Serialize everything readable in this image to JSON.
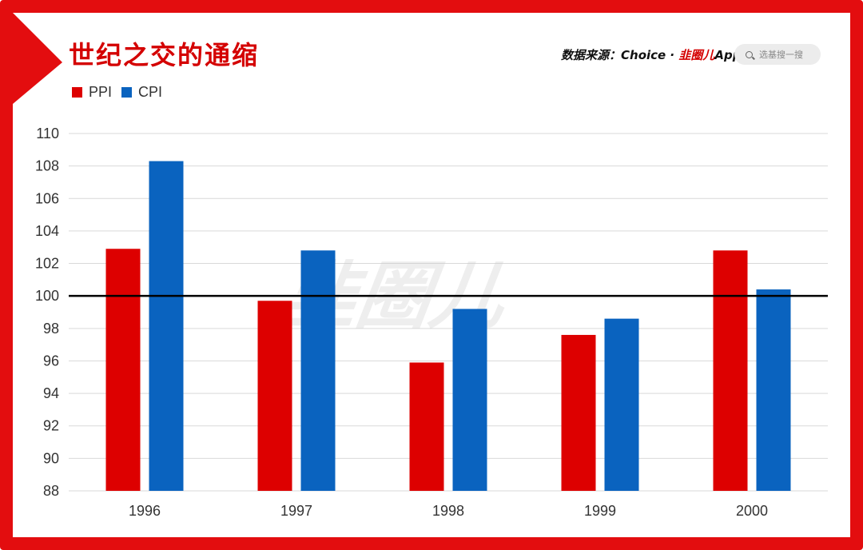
{
  "header": {
    "title": "世纪之交的通缩",
    "source_prefix": "数据来源：Choice · ",
    "source_brand": "韭圈儿",
    "source_suffix": "App",
    "search_placeholder": "选基搜一搜",
    "watermark": "韭圈儿"
  },
  "colors": {
    "frame": "#e30d0f",
    "ppi": "#dd0000",
    "cpi": "#0a63bf",
    "baseline": "#000000"
  },
  "chart_data": {
    "type": "bar",
    "title": "世纪之交的通缩",
    "categories": [
      "1996",
      "1997",
      "1998",
      "1999",
      "2000"
    ],
    "series": [
      {
        "name": "PPI",
        "values": [
          102.9,
          99.7,
          95.9,
          97.6,
          102.8
        ]
      },
      {
        "name": "CPI",
        "values": [
          108.3,
          102.8,
          99.2,
          98.6,
          100.4
        ]
      }
    ],
    "ylim": [
      88,
      110
    ],
    "yticks": [
      110,
      108,
      106,
      104,
      102,
      100,
      98,
      96,
      94,
      92,
      90,
      88
    ],
    "reference_line": 100,
    "grid": true,
    "legend": "top-left"
  }
}
